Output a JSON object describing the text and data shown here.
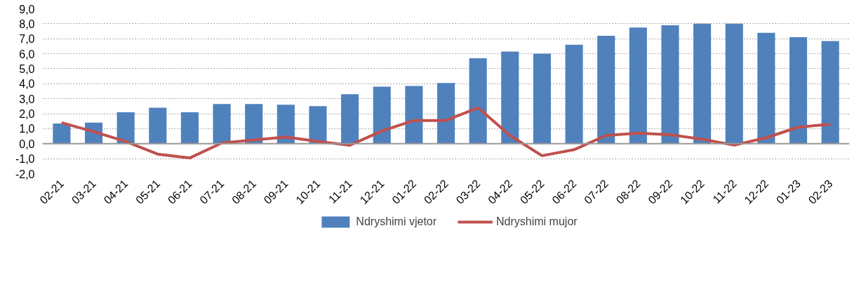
{
  "chart_data": {
    "type": "bar",
    "categories": [
      "02-21",
      "03-21",
      "04-21",
      "05-21",
      "06-21",
      "07-21",
      "08-21",
      "09-21",
      "10-21",
      "11-21",
      "12-21",
      "01-22",
      "02-22",
      "03-22",
      "04-22",
      "05-22",
      "06-22",
      "07-22",
      "08-22",
      "09-22",
      "10-22",
      "11-22",
      "12-22",
      "01-23",
      "02-23"
    ],
    "series": [
      {
        "name": "Ndryshimi vjetor",
        "color": "#4f81bd",
        "values": [
          1.35,
          1.4,
          2.1,
          2.4,
          2.1,
          2.65,
          2.65,
          2.6,
          2.5,
          3.3,
          3.8,
          3.85,
          4.05,
          5.7,
          6.15,
          6.0,
          6.6,
          7.2,
          7.75,
          7.9,
          8.0,
          8.0,
          7.4,
          7.1,
          6.85
        ]
      },
      {
        "name": "Ndryshimi mujor",
        "type": "line",
        "color": "#c0504d",
        "values": [
          1.4,
          0.8,
          0.15,
          -0.7,
          -0.95,
          0.05,
          0.25,
          0.45,
          0.15,
          -0.1,
          0.85,
          1.55,
          1.55,
          2.4,
          0.55,
          -0.8,
          -0.4,
          0.55,
          0.7,
          0.6,
          0.3,
          -0.1,
          0.4,
          1.1,
          1.3
        ]
      }
    ],
    "ylim": [
      -2.0,
      9.0
    ],
    "yticks": [
      {
        "value": -2,
        "label": "-2,0"
      },
      {
        "value": -1,
        "label": "-1,0"
      },
      {
        "value": 0,
        "label": "0,0"
      },
      {
        "value": 1,
        "label": "1,0"
      },
      {
        "value": 2,
        "label": "2,0"
      },
      {
        "value": 3,
        "label": "3,0"
      },
      {
        "value": 4,
        "label": "4,0"
      },
      {
        "value": 5,
        "label": "5,0"
      },
      {
        "value": 6,
        "label": "6,0"
      },
      {
        "value": 7,
        "label": "7,0"
      },
      {
        "value": 8,
        "label": "8,0"
      },
      {
        "value": 9,
        "label": "9,0"
      }
    ],
    "grid": "y",
    "legend": "bottom",
    "marker": "none",
    "line_style": "solid"
  }
}
